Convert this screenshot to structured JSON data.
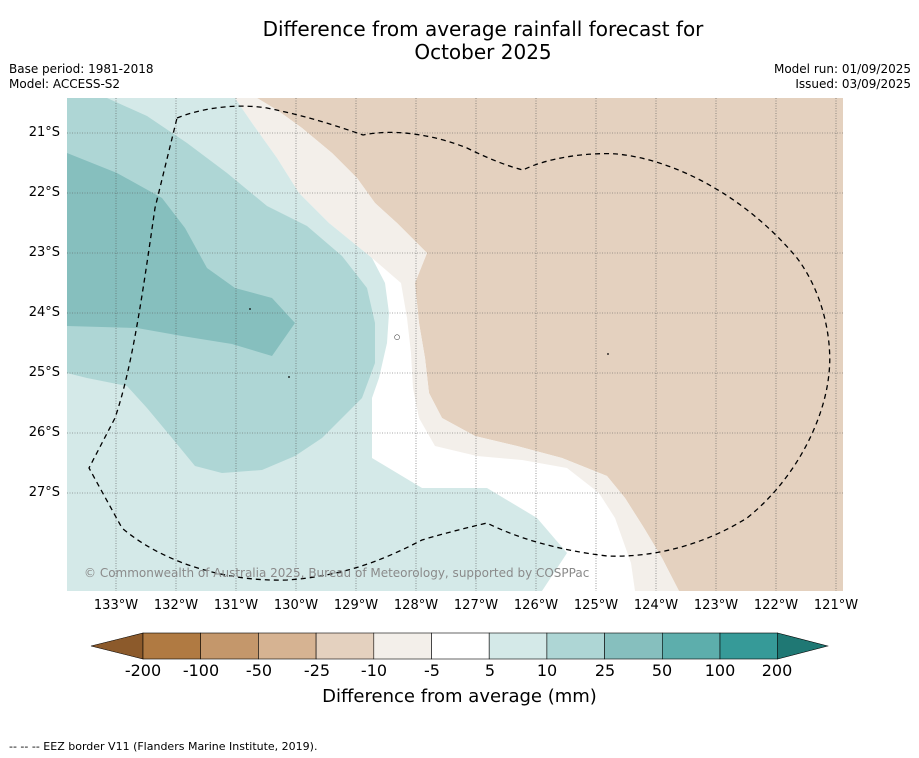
{
  "title_line1": "Difference from average rainfall forecast for",
  "title_line2": "October 2025",
  "base_period": "Base period: 1981-2018",
  "model": "Model: ACCESS-S2",
  "model_run": "Model run: 01/09/2025",
  "issued": "Issued: 03/09/2025",
  "lat_labels": [
    "21°S",
    "22°S",
    "23°S",
    "24°S",
    "25°S",
    "26°S",
    "27°S"
  ],
  "lon_labels": [
    "133°W",
    "132°W",
    "131°W",
    "130°W",
    "129°W",
    "128°W",
    "127°W",
    "126°W",
    "125°W",
    "124°W",
    "123°W",
    "122°W",
    "121°W"
  ],
  "copyright": "© Commonwealth of Australia 2025, Bureau of Meteorology, supported by COSPPac",
  "colorbar": {
    "ticks": [
      "-200",
      "-100",
      "-50",
      "-25",
      "-10",
      "-5",
      "5",
      "10",
      "25",
      "50",
      "100",
      "200"
    ],
    "colors": [
      "#8c5a2b",
      "#b07a42",
      "#c4976b",
      "#d6b392",
      "#e4d1bf",
      "#f3efea",
      "#ffffff",
      "#d4e9e8",
      "#aed6d5",
      "#86bfbe",
      "#5daeac",
      "#369a98",
      "#1f7874"
    ],
    "label": "Difference from average (mm)"
  },
  "footnote": "--  --  -- EEZ border V11 (Flanders Marine Institute, 2019)."
}
